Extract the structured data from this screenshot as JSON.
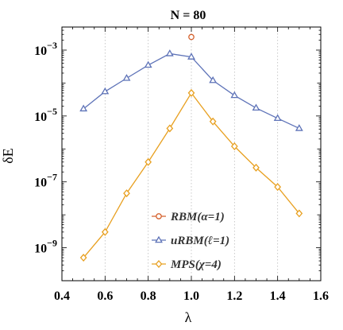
{
  "chart_data": {
    "type": "line",
    "title": "N = 80",
    "xlabel": "λ",
    "ylabel": "δE",
    "xlim": [
      0.4,
      1.6
    ],
    "ylim_log10": [
      -10,
      -2.3
    ],
    "y_scale": "log",
    "grid": "vertical dotted lines at x major ticks",
    "x_ticks": [
      0.4,
      0.6,
      0.8,
      1.0,
      1.2,
      1.4,
      1.6
    ],
    "x_tick_labels": [
      "0.4",
      "0.6",
      "0.8",
      "1.0",
      "1.2",
      "1.4",
      "1.6"
    ],
    "y_ticks": [
      0.001,
      1e-05,
      1e-07,
      1e-09
    ],
    "y_tick_labels": [
      {
        "base": "10",
        "exp": "−3"
      },
      {
        "base": "10",
        "exp": "−5"
      },
      {
        "base": "10",
        "exp": "−7"
      },
      {
        "base": "10",
        "exp": "−9"
      }
    ],
    "legend_position": "bottom-right-inside",
    "series": [
      {
        "name": "RBM(α=1)",
        "color": "#d5622e",
        "marker": "circle",
        "x": [
          1.0
        ],
        "y": [
          0.0025
        ]
      },
      {
        "name": "uRBM(ℓ=1)",
        "color": "#5e73b8",
        "marker": "triangle",
        "x": [
          0.5,
          0.6,
          0.7,
          0.8,
          0.9,
          1.0,
          1.1,
          1.2,
          1.3,
          1.4,
          1.5
        ],
        "y": [
          1.65e-05,
          5.5e-05,
          0.00014,
          0.00035,
          0.00078,
          0.00062,
          0.00012,
          4.2e-05,
          1.75e-05,
          8.5e-06,
          4.2e-06
        ]
      },
      {
        "name": "MPS(χ=4)",
        "color": "#e8a020",
        "marker": "diamond",
        "x": [
          0.5,
          0.6,
          0.7,
          0.8,
          0.9,
          1.0,
          1.1,
          1.2,
          1.3,
          1.4,
          1.5
        ],
        "y": [
          5e-10,
          3e-09,
          4.5e-08,
          4e-07,
          4.2e-06,
          5e-05,
          6.8e-06,
          1.2e-06,
          2.7e-07,
          7e-08,
          1.1e-08
        ]
      }
    ]
  }
}
